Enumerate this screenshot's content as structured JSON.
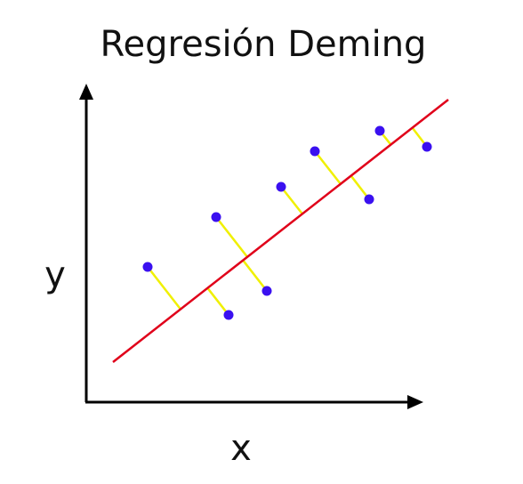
{
  "title": "Regresión Deming",
  "axes": {
    "y_label": "y",
    "x_label": "x"
  }
}
